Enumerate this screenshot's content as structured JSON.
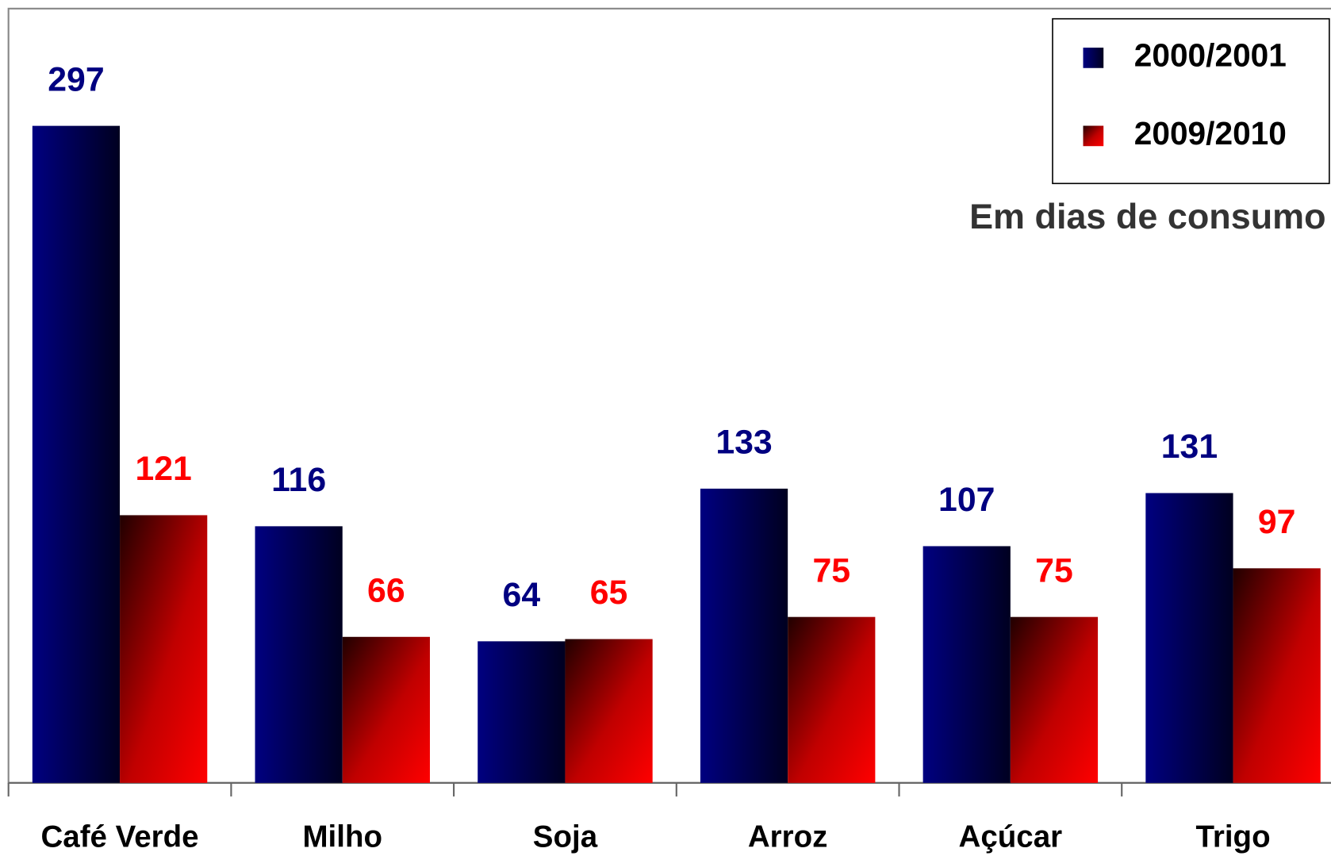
{
  "chart_data": {
    "type": "bar",
    "categories": [
      "Café Verde",
      "Milho",
      "Soja",
      "Arroz",
      "Açúcar",
      "Trigo"
    ],
    "series": [
      {
        "name": "2000/2001",
        "color": "#000080",
        "values": [
          297,
          116,
          64,
          133,
          107,
          131
        ]
      },
      {
        "name": "2009/2010",
        "color": "#ff0000",
        "values": [
          121,
          66,
          65,
          75,
          75,
          97
        ]
      }
    ],
    "annotation": "Em dias de consumo",
    "ylim": [
      0,
      350
    ],
    "legend": "upper right"
  }
}
